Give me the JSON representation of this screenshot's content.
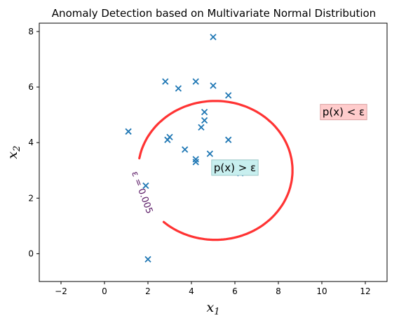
{
  "chart_data": {
    "type": "scatter",
    "title": "Anomaly Detection based on Multivariate Normal Distribution",
    "xlabel": "x",
    "xlabel_sub": "1",
    "ylabel": "x",
    "ylabel_sub": "2",
    "xlim": [
      -3,
      13
    ],
    "ylim": [
      -1,
      8.3
    ],
    "xticks": [
      -2,
      0,
      2,
      4,
      6,
      8,
      10,
      12
    ],
    "xtick_labels": [
      "−2",
      "0",
      "2",
      "4",
      "6",
      "8",
      "10",
      "12"
    ],
    "yticks": [
      0,
      2,
      4,
      6,
      8
    ],
    "ytick_labels": [
      "0",
      "2",
      "4",
      "6",
      "8"
    ],
    "grid": false,
    "marker": "x",
    "marker_color": "#1f77b4",
    "points": [
      {
        "x": 5.0,
        "y": 7.8
      },
      {
        "x": 2.8,
        "y": 6.2
      },
      {
        "x": 4.2,
        "y": 6.2
      },
      {
        "x": 3.4,
        "y": 5.95
      },
      {
        "x": 5.0,
        "y": 6.05
      },
      {
        "x": 5.7,
        "y": 5.7
      },
      {
        "x": 4.6,
        "y": 5.1
      },
      {
        "x": 4.6,
        "y": 4.8
      },
      {
        "x": 4.45,
        "y": 4.55
      },
      {
        "x": 1.1,
        "y": 4.4
      },
      {
        "x": 2.9,
        "y": 4.1
      },
      {
        "x": 3.0,
        "y": 4.2
      },
      {
        "x": 5.7,
        "y": 4.1
      },
      {
        "x": 3.7,
        "y": 3.75
      },
      {
        "x": 4.85,
        "y": 3.6
      },
      {
        "x": 4.2,
        "y": 3.4
      },
      {
        "x": 4.2,
        "y": 3.3
      },
      {
        "x": 6.25,
        "y": 2.9
      },
      {
        "x": 1.9,
        "y": 2.45
      },
      {
        "x": 2.0,
        "y": -0.2
      }
    ],
    "contour": {
      "center": [
        5.1,
        3.0
      ],
      "radius_x": 3.55,
      "radius_y": 2.5,
      "color": "#ff3333",
      "label": "ε = 0.005",
      "label_color": "#5b1a66",
      "label_gap_deg": [
        133,
        190
      ]
    },
    "annotations": [
      {
        "text": "p(x) < ε",
        "x": 11.0,
        "y": 5.1,
        "background": "#ffcccc",
        "border": "#d9a3a3"
      },
      {
        "text": "p(x) > ε",
        "x": 6.0,
        "y": 3.1,
        "background": "#c8efef",
        "border": "#9cc9c9"
      }
    ]
  }
}
